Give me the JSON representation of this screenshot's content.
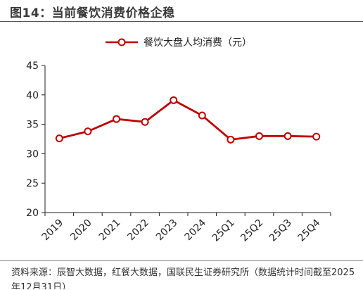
{
  "figure": {
    "title": "图14：当前餐饮消费价格企稳",
    "source": "资料来源：辰智大数据，红餐大数据，国联民生证券研究所（数据统计时间截至2025年12月31日）"
  },
  "chart_data": {
    "type": "line",
    "title": "",
    "xlabel": "",
    "ylabel": "",
    "categories": [
      "2019",
      "2020",
      "2021",
      "2022",
      "2023",
      "2024",
      "25Q1",
      "25Q2",
      "25Q3",
      "25Q4"
    ],
    "series": [
      {
        "name": "餐饮大盘人均消费（元）",
        "color": "#c00000",
        "marker": "hollow-circle",
        "values": [
          32.6,
          33.8,
          35.9,
          35.4,
          39.1,
          36.5,
          32.4,
          33.0,
          33.0,
          32.9
        ]
      }
    ],
    "ylim": [
      20,
      45
    ],
    "yticks": [
      20,
      25,
      30,
      35,
      40,
      45
    ],
    "grid": false,
    "legend": "top-center"
  }
}
